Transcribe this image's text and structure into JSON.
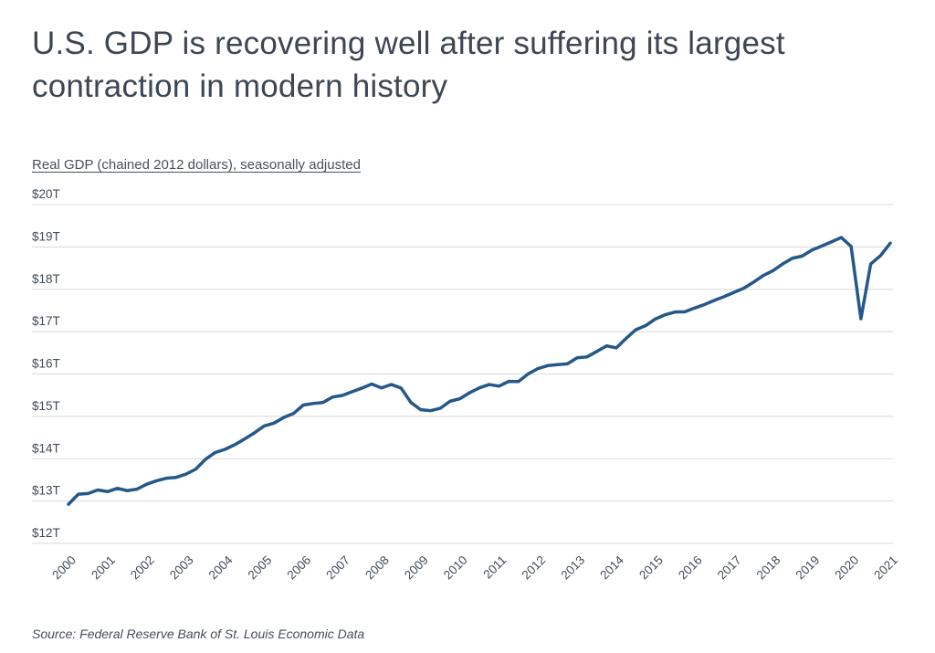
{
  "page": {
    "title_lines": [
      "U.S. GDP is recovering well after suffering its largest",
      "contraction in modern history"
    ],
    "subtitle": "Real GDP (chained 2012 dollars), seasonally adjusted",
    "source": "Source: Federal Reserve Bank of St. Louis Economic Data"
  },
  "colors": {
    "line": "#245889",
    "grid": "#d8d8d8",
    "axis_text": "#414b59",
    "title_text": "#3d4653"
  },
  "chart_data": {
    "type": "line",
    "title": "U.S. GDP is recovering well after suffering its largest contraction in modern history",
    "subtitle": "Real GDP (chained 2012 dollars), seasonally adjusted",
    "xlabel": "",
    "ylabel": "Real GDP (chained 2012 dollars), trillions",
    "x_frequency": "quarterly",
    "x_range": [
      "2000 Q1",
      "2021 Q1"
    ],
    "ylim": [
      12,
      20
    ],
    "grid": "horizontal",
    "legend": "none",
    "y_ticks": [
      {
        "value": 12,
        "label": "$12T"
      },
      {
        "value": 13,
        "label": "$13T"
      },
      {
        "value": 14,
        "label": "$14T"
      },
      {
        "value": 15,
        "label": "$15T"
      },
      {
        "value": 16,
        "label": "$16T"
      },
      {
        "value": 17,
        "label": "$17T"
      },
      {
        "value": 18,
        "label": "$18T"
      },
      {
        "value": 19,
        "label": "$19T"
      },
      {
        "value": 20,
        "label": "$20T"
      }
    ],
    "x_tick_labels": [
      "2000",
      "2001",
      "2002",
      "2003",
      "2004",
      "2005",
      "2006",
      "2007",
      "2008",
      "2009",
      "2010",
      "2011",
      "2012",
      "2013",
      "2014",
      "2015",
      "2016",
      "2017",
      "2018",
      "2019",
      "2020",
      "2021"
    ],
    "series": [
      {
        "name": "Real GDP (trillions of chained 2012 dollars)",
        "values": [
          12.924,
          13.161,
          13.178,
          13.261,
          13.223,
          13.3,
          13.245,
          13.281,
          13.397,
          13.478,
          13.538,
          13.559,
          13.634,
          13.752,
          13.985,
          14.146,
          14.221,
          14.33,
          14.465,
          14.61,
          14.772,
          14.84,
          14.972,
          15.067,
          15.267,
          15.303,
          15.326,
          15.457,
          15.493,
          15.582,
          15.667,
          15.762,
          15.671,
          15.752,
          15.667,
          15.328,
          15.156,
          15.134,
          15.189,
          15.356,
          15.415,
          15.557,
          15.672,
          15.751,
          15.713,
          15.825,
          15.821,
          16.004,
          16.129,
          16.199,
          16.221,
          16.239,
          16.383,
          16.403,
          16.532,
          16.664,
          16.617,
          16.841,
          17.047,
          17.143,
          17.3,
          17.399,
          17.463,
          17.469,
          17.557,
          17.639,
          17.735,
          17.824,
          17.925,
          18.021,
          18.164,
          18.322,
          18.438,
          18.598,
          18.733,
          18.784,
          18.927,
          19.022,
          19.121,
          19.222,
          19.011,
          17.303,
          18.597,
          18.794,
          19.088
        ]
      }
    ]
  }
}
